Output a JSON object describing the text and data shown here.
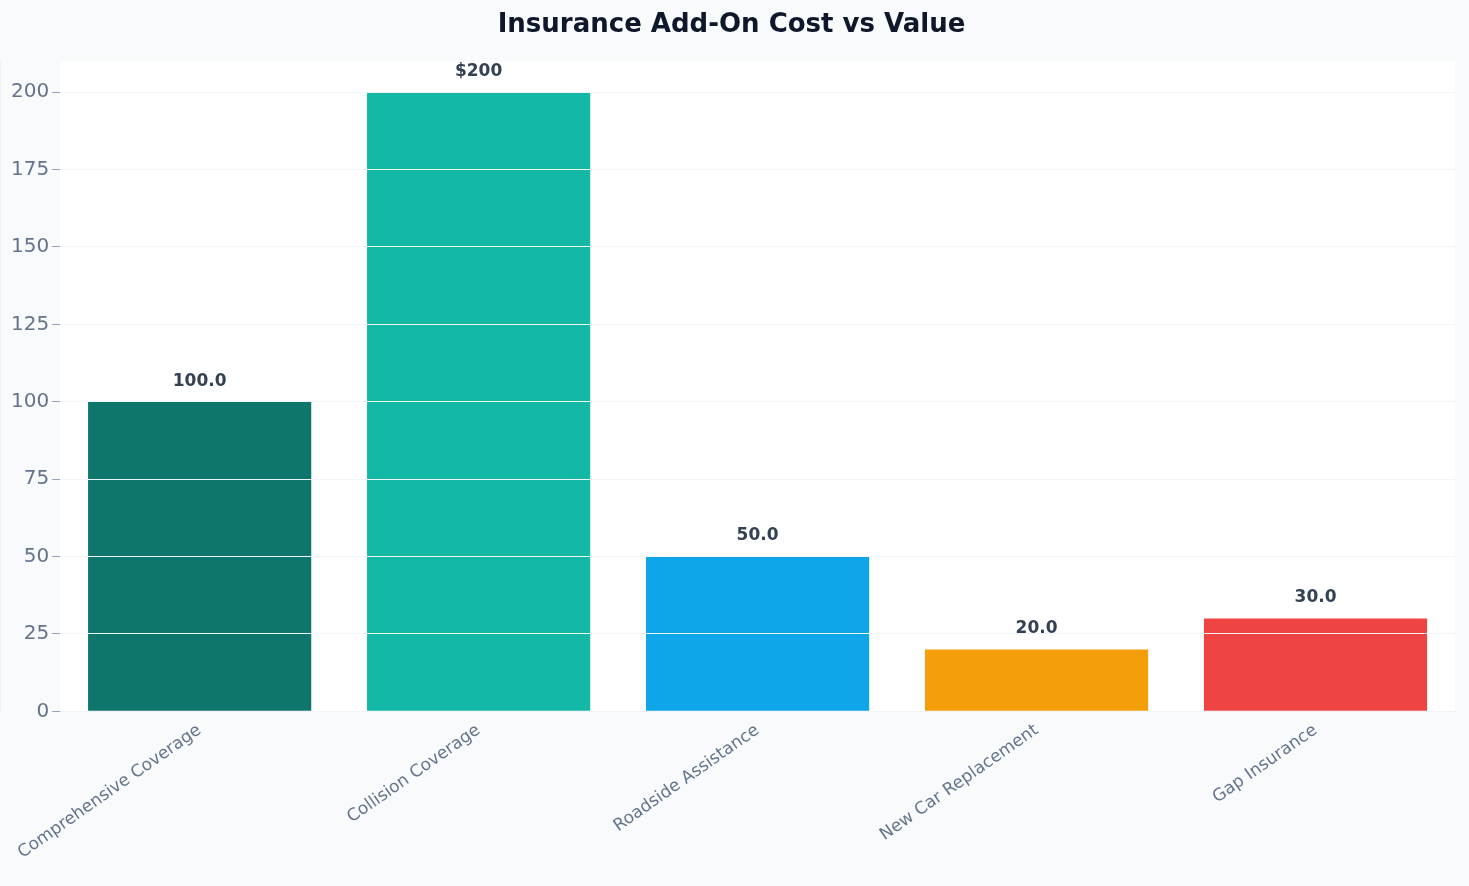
{
  "chart_data": {
    "type": "bar",
    "title": "Insurance Add-On Cost vs Value",
    "categories": [
      "Comprehensive Coverage",
      "Collision Coverage",
      "Roadside Assistance",
      "New Car Replacement",
      "Gap Insurance"
    ],
    "values": [
      100,
      200,
      50,
      20,
      30
    ],
    "colors": [
      "#0f766e",
      "#14b8a6",
      "#0ea5e9",
      "#f59e0b",
      "#ef4444"
    ],
    "value_labels": [
      "100.0",
      "$200",
      "50.0",
      "20.0",
      "30.0"
    ],
    "ylim": [
      0,
      210
    ],
    "yticks": [
      0,
      25,
      50,
      75,
      100,
      125,
      150,
      175,
      200
    ],
    "grid": "y",
    "legend": false
  }
}
